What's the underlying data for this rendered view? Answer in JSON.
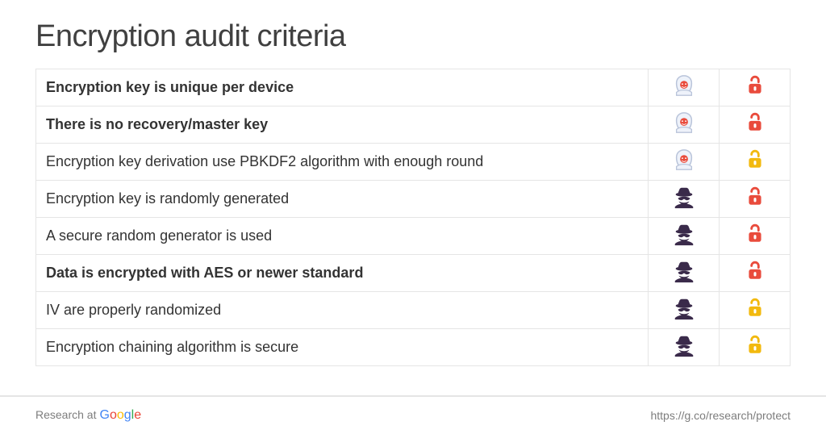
{
  "title": "Encryption audit criteria",
  "colors": {
    "border": "#e5e5e5",
    "text": "#333333",
    "lock_red": "#e94b3c",
    "lock_yellow": "#f2b90e",
    "hacker_hood_outline": "#b9c4da",
    "hacker_hood_fill": "#eef2fa",
    "hacker_face": "#e94b3c",
    "spy_color": "#3a2a4a"
  },
  "icons": {
    "hacker": "hooded-hood-icon",
    "spy": "spy-hat-icon",
    "lock_red": "broken-lock-red-icon",
    "lock_yellow": "lock-yellow-icon"
  },
  "rows": [
    {
      "label": "Encryption key is unique per device",
      "bold": true,
      "actor": "hacker",
      "lock": "red"
    },
    {
      "label": "There is no recovery/master key",
      "bold": true,
      "actor": "hacker",
      "lock": "red"
    },
    {
      "label": "Encryption key derivation use PBKDF2 algorithm with enough round",
      "bold": false,
      "actor": "hacker",
      "lock": "yellow"
    },
    {
      "label": "Encryption key is randomly generated",
      "bold": false,
      "actor": "spy",
      "lock": "red"
    },
    {
      "label": "A secure random generator is used",
      "bold": false,
      "actor": "spy",
      "lock": "red"
    },
    {
      "label": "Data is encrypted with AES or newer standard",
      "bold": true,
      "actor": "spy",
      "lock": "red"
    },
    {
      "label": "IV are properly randomized",
      "bold": false,
      "actor": "spy",
      "lock": "yellow"
    },
    {
      "label": "Encryption chaining algorithm is secure",
      "bold": false,
      "actor": "spy",
      "lock": "yellow"
    }
  ],
  "footer": {
    "left_prefix": "Research at ",
    "url": "https://g.co/research/protect",
    "google": [
      "G",
      "o",
      "o",
      "g",
      "l",
      "e"
    ]
  }
}
